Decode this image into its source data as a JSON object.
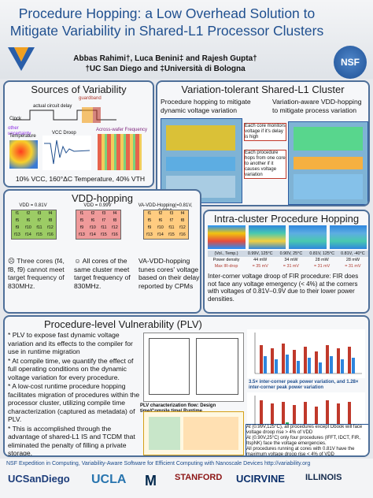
{
  "title": "Procedure Hopping: a Low Overhead Solution to Mitigate Variability in Shared-L1 Processor Clusters",
  "authors_line1": "Abbas Rahimi†, Luca Benini‡ and Rajesh Gupta†",
  "authors_line2": "†UC San Diego and ‡Università di Bologna",
  "nsf_logo": "NSF",
  "sources": {
    "title": "Sources of Variability",
    "guardband": "guardband",
    "actual_delay": "actual circuit delay",
    "clock": "Clock",
    "other": "other uncertainty",
    "temperature": "Temperature",
    "vcc_droop": "VCC Droop",
    "across_wafer": "Across-wafer Frequency",
    "caption": "10% VCC, 160°ΔC Temperature, 40% VTH"
  },
  "tolerant": {
    "title": "Variation-tolerant Shared-L1 Cluster",
    "left_caption": "Procedure hopping to mitigate dynamic voltage variation",
    "right_caption": "Variation-aware VDD-hopping to mitigate process variation",
    "note1": "Each core monitors voltage if it's delay is high",
    "note2": "Each procedure hops from one core to another if it causes voltage variation"
  },
  "vdd": {
    "title": "VDD-hopping",
    "grid1_header": "VDD = 0.81V",
    "grid2_header": "VDD = 0.99V",
    "grid3_header": "VA-VDD-Hopping(=0.81V, 0.99V)",
    "grid1": [
      "f1",
      "f2",
      "f3",
      "f4",
      "f5",
      "f6",
      "f7",
      "f8",
      "f9",
      "f10",
      "f11",
      "f12",
      "f13",
      "f14",
      "f15",
      "f16"
    ],
    "grid2": [
      "f1",
      "f2",
      "f3",
      "f4",
      "f5",
      "f6",
      "f7",
      "f8",
      "f9",
      "f10",
      "f11",
      "f12",
      "f13",
      "f14",
      "f15",
      "f16"
    ],
    "grid3": [
      "f1",
      "f2",
      "f3",
      "f4",
      "f5",
      "f6",
      "f7",
      "f8",
      "f9",
      "f10",
      "f11",
      "f12",
      "f13",
      "f14",
      "f15",
      "f16"
    ],
    "col1": "☹ Three cores (f4, f8, f9) cannot meet target frequency of 830MHz.",
    "col2": "☺ All cores of the same cluster meet target frequency of 830MHz.",
    "col3": "VA-VDD-hopping tunes cores' voltage based on their delay reported by CPMs"
  },
  "intra": {
    "title": "Intra-cluster Procedure Hopping",
    "table_headers": [
      "(Vol., Temp.)",
      "0.99V, 125°C",
      "0.90V, 25°C",
      "0.81V, 125°C",
      "0.81V, -40°C"
    ],
    "row1": [
      "Power density",
      "44 mW",
      "34 mW",
      "28 mW",
      "28 mW"
    ],
    "row2": [
      "Max IR-drop",
      "= 35 mV",
      "= 31 mV",
      "= 31 mV",
      "= 31 mV"
    ],
    "caption": "Inter-corner voltage droop of FIR procedure: FIR does not face any voltage emergency (< 4%) at the corners with voltages of 0.81V–0.9V due to their lower power densities."
  },
  "plv": {
    "title": "Procedure-level Vulnerability (PLV)",
    "bullets": [
      "* PLV to expose fast dynamic voltage variation and its effects to the compiler for use in runtime migration",
      "* At compile time, we quantify the effect of full operating conditions on the dynamic voltage variation for every procedure.",
      "* A low-cost runtime procedure hopping facilitates migration of procedures within the processor cluster, utilizing compile time characterization (captured as metadata) of PLV.",
      "* This is accomplished through the advantage of shared-L1 IS and TCDM that eliminated the penalty of filling a private storage."
    ],
    "flow_caption": "PLV characterization flow: Design time/Compile time/ Runtime",
    "chart1_caption": "3.5× inter-corner peak power variation, and 1.28× inter-corner peak power variation",
    "notes": [
      "At (0.99V,125°C), all procedures except Dbook will face voltage droop rise > 4% of VDD",
      "At (0.90V,25°C) only four procedures (IFFT, IDCT, FIR, ItspNK) face the voltage emergencies.",
      "All procedures running at cores with 0.81V have the maximum voltage droop rise < 4% of VDD"
    ]
  },
  "footer": {
    "line": "NSF Expedition in Computing, Variability-Aware Software for Efficient Computing with Nanoscale Devices http://variability.org",
    "logos": [
      "UCSanDiego",
      "UCLA",
      "M",
      "STANFORD",
      "UCIRVINE",
      "ILLINOIS"
    ]
  }
}
